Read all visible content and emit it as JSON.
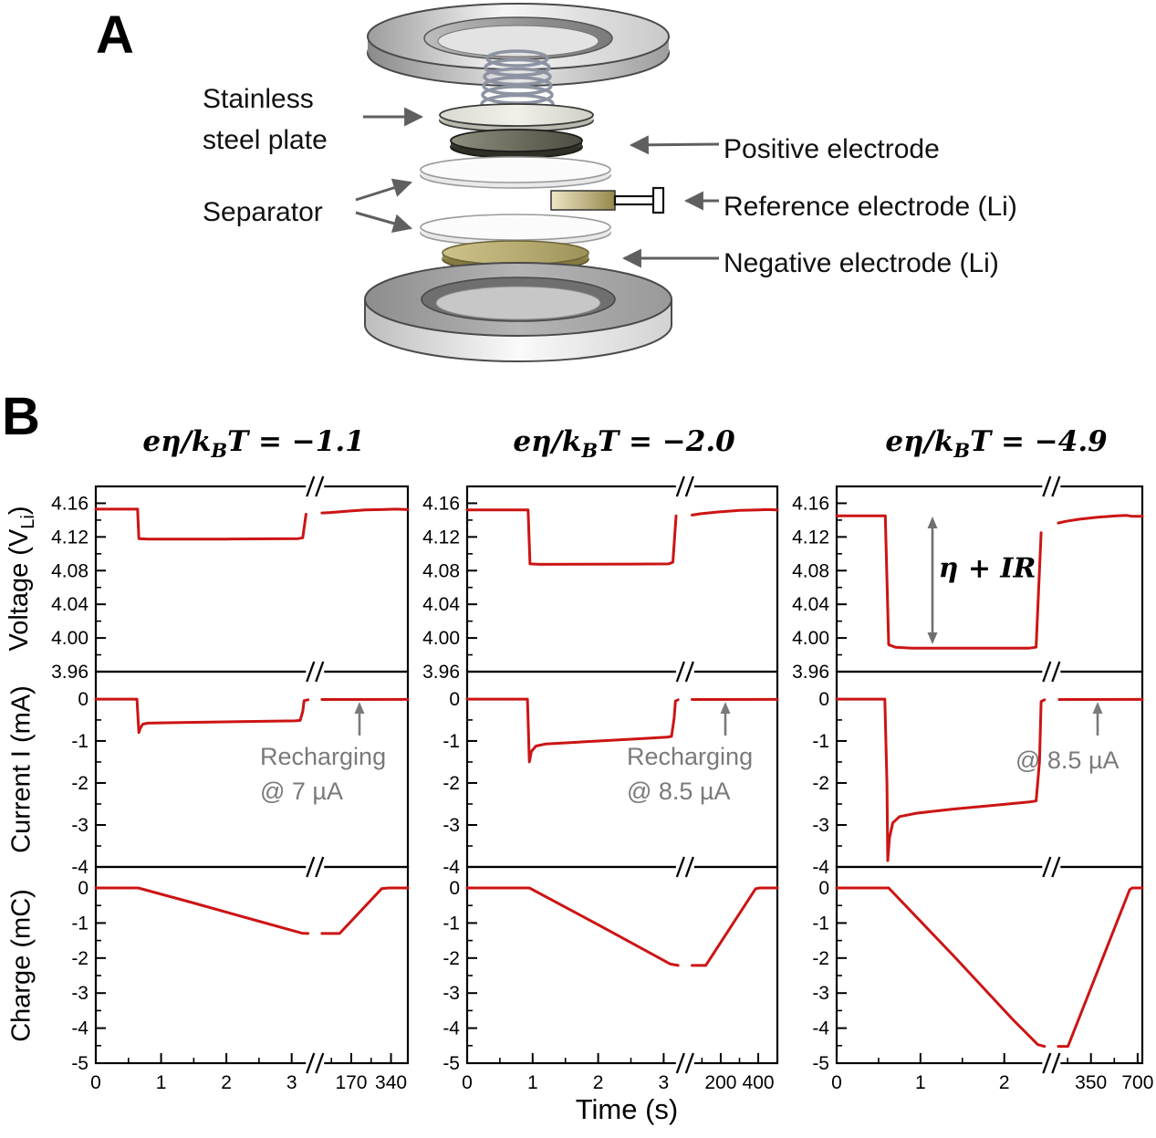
{
  "figure": {
    "panel_a": "A",
    "panel_b": "B"
  },
  "diagram": {
    "labels": {
      "stainless_line1": "Stainless",
      "stainless_line2": "steel plate",
      "separator": "Separator",
      "positive": "Positive electrode",
      "reference": "Reference electrode (Li)",
      "negative": "Negative electrode (Li)"
    }
  },
  "chart_data": {
    "type": "line",
    "series_color": "#cc1414",
    "annotation_color": "#7a7a7a",
    "xlabel": "Time (s)",
    "ylabels": {
      "voltage": {
        "lead": "Voltage (V",
        "sub": "Li",
        "tail": ")"
      },
      "current": {
        "lead": "Current I (mA)",
        "sub": "",
        "tail": ""
      },
      "charge": {
        "lead": "Charge (mC)",
        "sub": "",
        "tail": ""
      }
    },
    "y_axes": {
      "voltage": {
        "range": [
          3.96,
          4.18
        ],
        "major_ticks": [
          4.16,
          4.12,
          4.08,
          4.04,
          4.0,
          3.96
        ],
        "tick_labels": [
          "4.16",
          "4.12",
          "4.08",
          "4.04",
          "4.00",
          "3.96"
        ],
        "minor_ticks": [
          4.14,
          4.1,
          4.06,
          4.02,
          3.98
        ]
      },
      "current": {
        "range": [
          -4.0,
          0.65
        ],
        "major_ticks": [
          0,
          -1,
          -2,
          -3,
          -4
        ],
        "tick_labels": [
          "0",
          "-1",
          "-2",
          "-3",
          "-4"
        ],
        "minor_ticks": [
          -0.5,
          -1.5,
          -2.5,
          -3.5
        ]
      },
      "charge": {
        "range": [
          -5.0,
          0.6
        ],
        "major_ticks": [
          0,
          -1,
          -2,
          -3,
          -4,
          -5
        ],
        "tick_labels": [
          "0",
          "-1",
          "-2",
          "-3",
          "-4",
          "-5"
        ],
        "minor_ticks": [
          -0.5,
          -1.5,
          -2.5,
          -3.5,
          -4.5
        ]
      }
    },
    "columns": [
      {
        "title": {
          "lead": "eη/k",
          "sub": "B",
          "tail": "T = −1.1"
        },
        "annotation": {
          "line1": "Recharging",
          "line2": "@ 7 µA"
        },
        "voltage_annotation": "",
        "x_axis": {
          "pre_range": [
            0,
            3.25
          ],
          "pre_ticks": [
            0,
            1,
            2,
            3
          ],
          "pre_tick_labels": [
            "0",
            "1",
            "2",
            "3"
          ],
          "pre_minor": [
            0.5,
            1.5,
            2.5
          ],
          "post_range": [
            45,
            412
          ],
          "post_ticks": [
            170,
            340
          ],
          "post_tick_labels": [
            "170",
            "340"
          ],
          "post_minor": [
            85,
            255
          ],
          "break": true
        },
        "series": {
          "voltage": {
            "pre": [
              [
                0,
                4.153
              ],
              [
                0.64,
                4.153
              ],
              [
                0.66,
                4.118
              ],
              [
                0.8,
                4.1175
              ],
              [
                2.0,
                4.1175
              ],
              [
                3.1,
                4.118
              ],
              [
                3.17,
                4.119
              ],
              [
                3.22,
                4.147
              ]
            ],
            "post": [
              [
                45,
                4.1485
              ],
              [
                80,
                4.149
              ],
              [
                150,
                4.1505
              ],
              [
                230,
                4.152
              ],
              [
                300,
                4.1525
              ],
              [
                360,
                4.153
              ],
              [
                412,
                4.1525
              ]
            ]
          },
          "current": {
            "pre": [
              [
                0,
                -0.005
              ],
              [
                0.63,
                -0.005
              ],
              [
                0.66,
                -0.8
              ],
              [
                0.68,
                -0.7
              ],
              [
                0.72,
                -0.6
              ],
              [
                0.8,
                -0.575
              ],
              [
                1.4,
                -0.558
              ],
              [
                2.2,
                -0.54
              ],
              [
                3.05,
                -0.522
              ],
              [
                3.13,
                -0.51
              ],
              [
                3.17,
                -0.3
              ],
              [
                3.19,
                -0.04
              ],
              [
                3.25,
                -0.02
              ]
            ],
            "post": [
              [
                45,
                -0.012
              ],
              [
                412,
                -0.01
              ]
            ]
          },
          "charge": {
            "pre": [
              [
                0,
                0
              ],
              [
                0.65,
                0
              ],
              [
                1.5,
                -0.43
              ],
              [
                2.5,
                -0.95
              ],
              [
                3.16,
                -1.29
              ],
              [
                3.25,
                -1.3
              ]
            ],
            "post": [
              [
                45,
                -1.3
              ],
              [
                120,
                -1.3
              ],
              [
                300,
                -0.02
              ],
              [
                330,
                0
              ],
              [
                412,
                0
              ]
            ]
          }
        }
      },
      {
        "title": {
          "lead": "eη/k",
          "sub": "B",
          "tail": "T = −2.0"
        },
        "annotation": {
          "line1": "Recharging",
          "line2": "@ 8.5 µA"
        },
        "voltage_annotation": "",
        "x_axis": {
          "pre_range": [
            0,
            3.22
          ],
          "pre_ticks": [
            0,
            1,
            2,
            3
          ],
          "pre_tick_labels": [
            "0",
            "1",
            "2",
            "3"
          ],
          "pre_minor": [
            0.5,
            1.5,
            2.5
          ],
          "post_range": [
            47,
            502
          ],
          "post_ticks": [
            200,
            400
          ],
          "post_tick_labels": [
            "200",
            "400"
          ],
          "post_minor": [
            100,
            300
          ],
          "break": true
        },
        "series": {
          "voltage": {
            "pre": [
              [
                0,
                4.152
              ],
              [
                0.93,
                4.152
              ],
              [
                0.96,
                4.088
              ],
              [
                1.1,
                4.0875
              ],
              [
                2.5,
                4.0878
              ],
              [
                3.08,
                4.088
              ],
              [
                3.14,
                4.09
              ],
              [
                3.19,
                4.145
              ]
            ],
            "post": [
              [
                47,
                4.146
              ],
              [
                90,
                4.1475
              ],
              [
                180,
                4.1495
              ],
              [
                300,
                4.1515
              ],
              [
                400,
                4.152
              ],
              [
                450,
                4.1525
              ],
              [
                502,
                4.152
              ]
            ]
          },
          "current": {
            "pre": [
              [
                0,
                -0.005
              ],
              [
                0.92,
                -0.005
              ],
              [
                0.95,
                -1.5
              ],
              [
                0.98,
                -1.25
              ],
              [
                1.05,
                -1.12
              ],
              [
                1.2,
                -1.07
              ],
              [
                1.9,
                -1.01
              ],
              [
                2.6,
                -0.95
              ],
              [
                3.05,
                -0.91
              ],
              [
                3.12,
                -0.89
              ],
              [
                3.16,
                -0.45
              ],
              [
                3.18,
                -0.05
              ],
              [
                3.22,
                -0.02
              ]
            ],
            "post": [
              [
                47,
                -0.012
              ],
              [
                502,
                -0.01
              ]
            ]
          },
          "charge": {
            "pre": [
              [
                0,
                0
              ],
              [
                0.95,
                0
              ],
              [
                2.0,
                -1.05
              ],
              [
                3.1,
                -2.17
              ],
              [
                3.22,
                -2.21
              ]
            ],
            "post": [
              [
                47,
                -2.21
              ],
              [
                120,
                -2.21
              ],
              [
                386,
                -0.02
              ],
              [
                410,
                0
              ],
              [
                502,
                0
              ]
            ]
          }
        }
      },
      {
        "title": {
          "lead": "eη/k",
          "sub": "B",
          "tail": "T = −4.9"
        },
        "annotation": {
          "line1": "@ 8.5 µA",
          "line2": ""
        },
        "voltage_annotation": "η + IR",
        "x_axis": {
          "pre_range": [
            0,
            2.48
          ],
          "pre_ticks": [
            0,
            1,
            2
          ],
          "pre_tick_labels": [
            "0",
            "1",
            "2"
          ],
          "pre_minor": [
            0.5,
            1.5
          ],
          "post_range": [
            105,
            735
          ],
          "post_ticks": [
            350,
            700
          ],
          "post_tick_labels": [
            "350",
            "700"
          ],
          "post_minor": [
            175,
            525
          ],
          "break": true
        },
        "series": {
          "voltage": {
            "pre": [
              [
                0,
                4.145
              ],
              [
                0.58,
                4.145
              ],
              [
                0.62,
                3.992
              ],
              [
                0.7,
                3.989
              ],
              [
                0.9,
                3.988
              ],
              [
                2.3,
                3.988
              ],
              [
                2.38,
                3.989
              ],
              [
                2.44,
                4.125
              ]
            ],
            "post": [
              [
                105,
                4.1365
              ],
              [
                160,
                4.1385
              ],
              [
                260,
                4.141
              ],
              [
                400,
                4.1435
              ],
              [
                540,
                4.145
              ],
              [
                620,
                4.1455
              ],
              [
                660,
                4.1445
              ],
              [
                735,
                4.1445
              ]
            ]
          },
          "current": {
            "pre": [
              [
                0,
                -0.005
              ],
              [
                0.575,
                -0.005
              ],
              [
                0.6,
                -2.0
              ],
              [
                0.61,
                -3.85
              ],
              [
                0.63,
                -3.3
              ],
              [
                0.67,
                -2.95
              ],
              [
                0.75,
                -2.8
              ],
              [
                0.95,
                -2.72
              ],
              [
                1.4,
                -2.62
              ],
              [
                1.9,
                -2.53
              ],
              [
                2.3,
                -2.45
              ],
              [
                2.38,
                -2.43
              ],
              [
                2.42,
                -1.5
              ],
              [
                2.44,
                -0.06
              ],
              [
                2.48,
                -0.02
              ]
            ],
            "post": [
              [
                112,
                -0.012
              ],
              [
                735,
                -0.01
              ]
            ]
          },
          "charge": {
            "pre": [
              [
                0,
                0
              ],
              [
                0.62,
                0
              ],
              [
                1.4,
                -1.95
              ],
              [
                2.1,
                -3.75
              ],
              [
                2.4,
                -4.47
              ],
              [
                2.48,
                -4.52
              ]
            ],
            "post": [
              [
                105,
                -4.52
              ],
              [
                178,
                -4.52
              ],
              [
                640,
                -0.05
              ],
              [
                660,
                0
              ],
              [
                735,
                0
              ]
            ]
          }
        }
      }
    ]
  }
}
